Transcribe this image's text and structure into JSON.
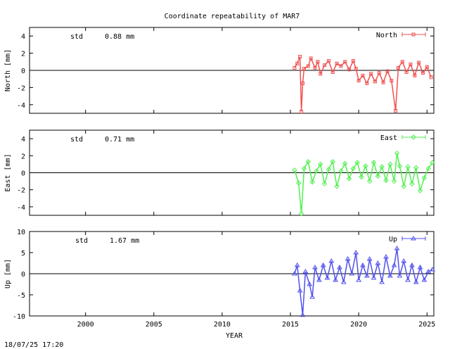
{
  "title": "Coordinate repeatability of MAR7",
  "footer": "18/07/25 17:20",
  "xlabel": "YEAR",
  "chart_data": {
    "type": "line",
    "title": "Coordinate repeatability of MAR7",
    "xlabel": "YEAR",
    "x_ticks": [
      2000,
      2005,
      2010,
      2015,
      2020,
      2025
    ],
    "xlim": [
      1995.9,
      2025.5
    ],
    "grid": false,
    "panels": [
      {
        "series_name": "North",
        "ylabel": "North [mm]",
        "std_label": "std",
        "std_value": "0.88 mm",
        "color": "#f05050",
        "marker": "square",
        "legend": "top-right",
        "ylim": [
          -5,
          5
        ],
        "yticks": [
          4,
          2,
          0,
          -2,
          -4
        ],
        "data": [
          [
            2015.3,
            0.3
          ],
          [
            2015.5,
            0.8
          ],
          [
            2015.7,
            1.6
          ],
          [
            2015.8,
            -4.8
          ],
          [
            2015.9,
            -1.5
          ],
          [
            2016.0,
            0.2
          ],
          [
            2016.3,
            0.5
          ],
          [
            2016.5,
            1.4
          ],
          [
            2016.8,
            0.3
          ],
          [
            2017.0,
            1.0
          ],
          [
            2017.2,
            -0.4
          ],
          [
            2017.5,
            0.6
          ],
          [
            2017.8,
            1.1
          ],
          [
            2018.1,
            -0.2
          ],
          [
            2018.4,
            0.8
          ],
          [
            2018.7,
            0.5
          ],
          [
            2019.0,
            1.0
          ],
          [
            2019.3,
            0.1
          ],
          [
            2019.6,
            1.1
          ],
          [
            2019.8,
            0.2
          ],
          [
            2020.0,
            -1.2
          ],
          [
            2020.3,
            -0.6
          ],
          [
            2020.6,
            -1.5
          ],
          [
            2020.9,
            -0.4
          ],
          [
            2021.2,
            -1.3
          ],
          [
            2021.5,
            -0.3
          ],
          [
            2021.8,
            -1.4
          ],
          [
            2022.1,
            -0.1
          ],
          [
            2022.4,
            -1.2
          ],
          [
            2022.7,
            -4.7
          ],
          [
            2022.9,
            0.3
          ],
          [
            2023.2,
            1.0
          ],
          [
            2023.5,
            -0.2
          ],
          [
            2023.8,
            0.7
          ],
          [
            2024.1,
            -0.6
          ],
          [
            2024.4,
            0.9
          ],
          [
            2024.7,
            -0.3
          ],
          [
            2025.0,
            0.4
          ],
          [
            2025.3,
            -0.8
          ]
        ]
      },
      {
        "series_name": "East",
        "ylabel": "East [mm]",
        "std_label": "std",
        "std_value": "0.71 mm",
        "color": "#50f050",
        "marker": "diamond",
        "legend": "top-right",
        "ylim": [
          -5,
          5
        ],
        "yticks": [
          4,
          2,
          0,
          -2,
          -4
        ],
        "data": [
          [
            2015.3,
            0.3
          ],
          [
            2015.6,
            -1.2
          ],
          [
            2015.8,
            -4.8
          ],
          [
            2016.0,
            0.5
          ],
          [
            2016.3,
            1.3
          ],
          [
            2016.6,
            -1.1
          ],
          [
            2016.9,
            0.2
          ],
          [
            2017.2,
            1.0
          ],
          [
            2017.5,
            -1.3
          ],
          [
            2017.8,
            0.4
          ],
          [
            2018.1,
            1.3
          ],
          [
            2018.4,
            -1.6
          ],
          [
            2018.7,
            0.2
          ],
          [
            2019.0,
            1.1
          ],
          [
            2019.3,
            -0.7
          ],
          [
            2019.6,
            0.5
          ],
          [
            2019.9,
            1.2
          ],
          [
            2020.2,
            -0.5
          ],
          [
            2020.5,
            0.8
          ],
          [
            2020.8,
            -1.0
          ],
          [
            2021.1,
            1.2
          ],
          [
            2021.4,
            -0.4
          ],
          [
            2021.7,
            0.7
          ],
          [
            2022.0,
            -0.9
          ],
          [
            2022.3,
            1.0
          ],
          [
            2022.6,
            -1.0
          ],
          [
            2022.8,
            2.3
          ],
          [
            2023.0,
            0.8
          ],
          [
            2023.3,
            -1.6
          ],
          [
            2023.6,
            0.7
          ],
          [
            2023.9,
            -1.3
          ],
          [
            2024.2,
            0.6
          ],
          [
            2024.5,
            -2.1
          ],
          [
            2024.8,
            -0.6
          ],
          [
            2025.1,
            0.5
          ],
          [
            2025.4,
            1.2
          ]
        ]
      },
      {
        "series_name": "Up",
        "ylabel": "Up [mm]",
        "std_label": "std",
        "std_value": "1.67 mm",
        "color": "#5050f0",
        "marker": "triangle",
        "legend": "top-right",
        "ylim": [
          -10,
          10
        ],
        "yticks": [
          10,
          5,
          0,
          -5,
          -10
        ],
        "data": [
          [
            2015.3,
            0.0
          ],
          [
            2015.5,
            2.0
          ],
          [
            2015.7,
            -4.0
          ],
          [
            2015.9,
            -9.8
          ],
          [
            2016.1,
            0.5
          ],
          [
            2016.4,
            -2.5
          ],
          [
            2016.6,
            -5.5
          ],
          [
            2016.8,
            1.5
          ],
          [
            2017.1,
            -1.5
          ],
          [
            2017.4,
            2.0
          ],
          [
            2017.7,
            -1.0
          ],
          [
            2018.0,
            3.0
          ],
          [
            2018.3,
            -1.5
          ],
          [
            2018.6,
            1.5
          ],
          [
            2018.9,
            -2.0
          ],
          [
            2019.2,
            3.5
          ],
          [
            2019.5,
            0.0
          ],
          [
            2019.8,
            5.0
          ],
          [
            2020.0,
            -1.5
          ],
          [
            2020.3,
            2.0
          ],
          [
            2020.6,
            -0.5
          ],
          [
            2020.8,
            3.5
          ],
          [
            2021.1,
            -1.0
          ],
          [
            2021.4,
            2.5
          ],
          [
            2021.7,
            -2.0
          ],
          [
            2022.0,
            4.0
          ],
          [
            2022.3,
            -0.5
          ],
          [
            2022.6,
            2.0
          ],
          [
            2022.8,
            6.0
          ],
          [
            2023.0,
            -0.5
          ],
          [
            2023.3,
            3.0
          ],
          [
            2023.6,
            -1.5
          ],
          [
            2023.9,
            2.0
          ],
          [
            2024.2,
            -2.0
          ],
          [
            2024.5,
            1.5
          ],
          [
            2024.8,
            -1.5
          ],
          [
            2025.1,
            0.5
          ],
          [
            2025.4,
            1.0
          ]
        ]
      }
    ]
  }
}
